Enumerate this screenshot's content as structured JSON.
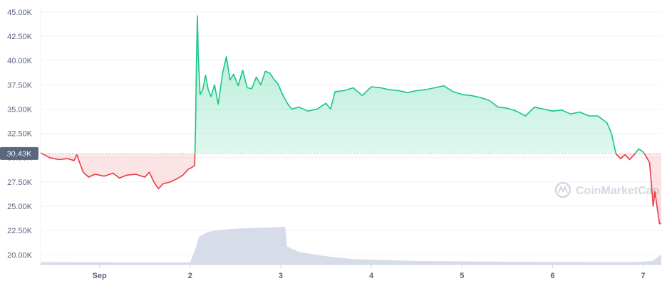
{
  "chart_data": {
    "type": "area",
    "baseline": 30430,
    "baseline_label": "30.43K",
    "watermark": "CoinMarketCap",
    "ylim": [
      19000,
      45500
    ],
    "y_ticks": [
      {
        "value": 20000,
        "label": "20.00K"
      },
      {
        "value": 22500,
        "label": "22.50K"
      },
      {
        "value": 25000,
        "label": "25.00K"
      },
      {
        "value": 27500,
        "label": "27.50K"
      },
      {
        "value": 30000,
        "label": "30.00K"
      },
      {
        "value": 32500,
        "label": "32.50K"
      },
      {
        "value": 35000,
        "label": "35.00K"
      },
      {
        "value": 37500,
        "label": "37.50K"
      },
      {
        "value": 40000,
        "label": "40.00K"
      },
      {
        "value": 42500,
        "label": "42.50K"
      },
      {
        "value": 45000,
        "label": "45.00K"
      }
    ],
    "xlim": [
      0.35,
      7.2
    ],
    "x_ticks": [
      {
        "value": 1,
        "label": "Sep"
      },
      {
        "value": 2,
        "label": "2"
      },
      {
        "value": 3,
        "label": "3"
      },
      {
        "value": 4,
        "label": "4"
      },
      {
        "value": 5,
        "label": "5"
      },
      {
        "value": 6,
        "label": "6"
      },
      {
        "value": 7,
        "label": "7"
      }
    ],
    "colors": {
      "up": "#16c784",
      "down": "#ea3943",
      "volume": "#cfd6e4",
      "grid": "#eff2f5",
      "axis_text": "#58667e",
      "baseline_tag": "#58667e"
    },
    "price_series": [
      [
        0.35,
        30500
      ],
      [
        0.45,
        30000
      ],
      [
        0.55,
        29800
      ],
      [
        0.65,
        29900
      ],
      [
        0.72,
        29700
      ],
      [
        0.75,
        30300
      ],
      [
        0.78,
        29500
      ],
      [
        0.82,
        28500
      ],
      [
        0.88,
        28000
      ],
      [
        0.95,
        28300
      ],
      [
        1.05,
        28100
      ],
      [
        1.15,
        28400
      ],
      [
        1.22,
        27900
      ],
      [
        1.3,
        28200
      ],
      [
        1.4,
        28300
      ],
      [
        1.5,
        28000
      ],
      [
        1.55,
        28500
      ],
      [
        1.6,
        27500
      ],
      [
        1.65,
        26800
      ],
      [
        1.7,
        27300
      ],
      [
        1.78,
        27500
      ],
      [
        1.85,
        27800
      ],
      [
        1.92,
        28200
      ],
      [
        1.98,
        28800
      ],
      [
        2.02,
        29000
      ],
      [
        2.05,
        29200
      ],
      [
        2.06,
        33000
      ],
      [
        2.07,
        40000
      ],
      [
        2.08,
        44600
      ],
      [
        2.09,
        40500
      ],
      [
        2.11,
        36500
      ],
      [
        2.14,
        37000
      ],
      [
        2.17,
        38500
      ],
      [
        2.2,
        37000
      ],
      [
        2.23,
        36300
      ],
      [
        2.27,
        37500
      ],
      [
        2.31,
        35500
      ],
      [
        2.36,
        38800
      ],
      [
        2.4,
        40400
      ],
      [
        2.44,
        38000
      ],
      [
        2.48,
        38600
      ],
      [
        2.53,
        37400
      ],
      [
        2.58,
        39000
      ],
      [
        2.63,
        37200
      ],
      [
        2.68,
        37100
      ],
      [
        2.73,
        38300
      ],
      [
        2.78,
        37500
      ],
      [
        2.83,
        38900
      ],
      [
        2.88,
        38700
      ],
      [
        2.93,
        38000
      ],
      [
        2.97,
        37600
      ],
      [
        3.02,
        36500
      ],
      [
        3.08,
        35500
      ],
      [
        3.12,
        35000
      ],
      [
        3.2,
        35200
      ],
      [
        3.3,
        34800
      ],
      [
        3.4,
        35000
      ],
      [
        3.5,
        35600
      ],
      [
        3.55,
        35000
      ],
      [
        3.6,
        36800
      ],
      [
        3.7,
        36900
      ],
      [
        3.8,
        37200
      ],
      [
        3.9,
        36400
      ],
      [
        4.0,
        37300
      ],
      [
        4.1,
        37200
      ],
      [
        4.2,
        37000
      ],
      [
        4.3,
        36900
      ],
      [
        4.4,
        36700
      ],
      [
        4.5,
        36900
      ],
      [
        4.6,
        37000
      ],
      [
        4.7,
        37200
      ],
      [
        4.8,
        37400
      ],
      [
        4.9,
        36800
      ],
      [
        5.0,
        36500
      ],
      [
        5.1,
        36400
      ],
      [
        5.2,
        36200
      ],
      [
        5.3,
        35900
      ],
      [
        5.4,
        35200
      ],
      [
        5.5,
        35100
      ],
      [
        5.6,
        34800
      ],
      [
        5.7,
        34300
      ],
      [
        5.8,
        35200
      ],
      [
        5.9,
        35000
      ],
      [
        6.0,
        34800
      ],
      [
        6.1,
        34900
      ],
      [
        6.2,
        34500
      ],
      [
        6.3,
        34700
      ],
      [
        6.4,
        34300
      ],
      [
        6.5,
        34300
      ],
      [
        6.6,
        33600
      ],
      [
        6.65,
        32500
      ],
      [
        6.7,
        30400
      ],
      [
        6.75,
        29900
      ],
      [
        6.8,
        30300
      ],
      [
        6.85,
        29800
      ],
      [
        6.9,
        30300
      ],
      [
        6.95,
        30900
      ],
      [
        7.0,
        30600
      ],
      [
        7.04,
        30000
      ],
      [
        7.07,
        29500
      ],
      [
        7.09,
        27400
      ],
      [
        7.11,
        25000
      ],
      [
        7.13,
        26500
      ],
      [
        7.16,
        24500
      ],
      [
        7.18,
        23200
      ],
      [
        7.2,
        23200
      ]
    ],
    "volume_series": [
      [
        0.35,
        0.06
      ],
      [
        1.0,
        0.055
      ],
      [
        1.5,
        0.05
      ],
      [
        2.0,
        0.055
      ],
      [
        2.06,
        0.4
      ],
      [
        2.1,
        0.7
      ],
      [
        2.2,
        0.82
      ],
      [
        2.3,
        0.86
      ],
      [
        2.5,
        0.9
      ],
      [
        2.7,
        0.92
      ],
      [
        2.9,
        0.93
      ],
      [
        3.05,
        0.95
      ],
      [
        3.07,
        0.45
      ],
      [
        3.2,
        0.32
      ],
      [
        3.4,
        0.24
      ],
      [
        3.6,
        0.18
      ],
      [
        3.8,
        0.14
      ],
      [
        4.0,
        0.12
      ],
      [
        4.5,
        0.09
      ],
      [
        5.0,
        0.08
      ],
      [
        5.5,
        0.07
      ],
      [
        6.0,
        0.065
      ],
      [
        6.5,
        0.06
      ],
      [
        6.9,
        0.06
      ],
      [
        7.1,
        0.09
      ],
      [
        7.2,
        0.25
      ]
    ]
  }
}
